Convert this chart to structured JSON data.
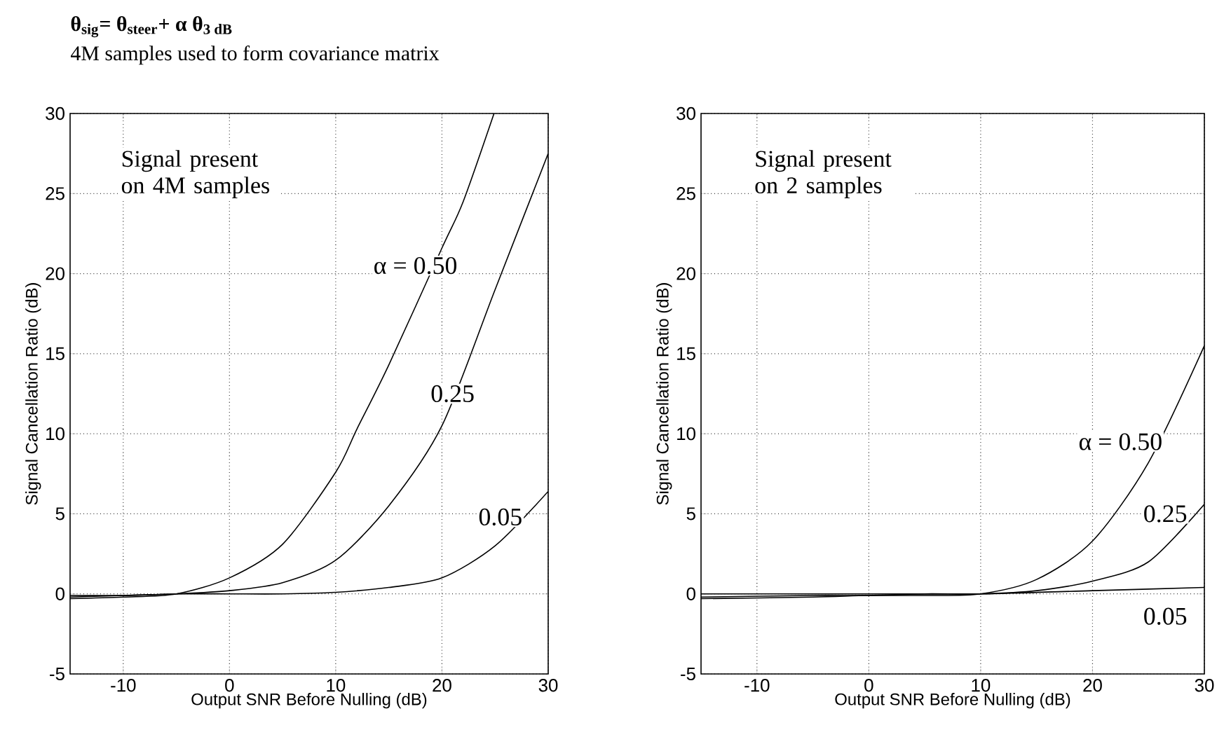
{
  "chart_data": [
    {
      "type": "line",
      "title": "θ$_{sig}$= θ$_{steer}$+ α θ$_{3 dB}$",
      "subtitle": "4M samples used to form covariance matrix",
      "xlabel": "Output SNR Before Nulling (dB)",
      "ylabel": "Signal Cancellation Ratio (dB)",
      "annotations": [
        "Signal present on 4M samples"
      ],
      "xlim": [
        -15,
        30
      ],
      "ylim": [
        -5,
        30
      ],
      "xticks": [
        -10,
        0,
        10,
        20,
        30
      ],
      "yticks": [
        -5,
        0,
        5,
        10,
        15,
        20,
        25,
        30
      ],
      "grid": true,
      "line_style": "solid",
      "marker": "none",
      "series": [
        {
          "name": "α = 0.50",
          "color": "#000000",
          "x": [
            -15,
            -10,
            -5,
            0,
            5,
            10,
            12,
            15,
            20,
            22,
            24.9
          ],
          "values": [
            -0.3,
            -0.2,
            0,
            1,
            3.1,
            7.6,
            10.3,
            14.3,
            21.6,
            24.5,
            30
          ]
        },
        {
          "name": "0.25",
          "color": "#000000",
          "x": [
            -15,
            -10,
            -5,
            0,
            5,
            10,
            15,
            20,
            25,
            30
          ],
          "values": [
            -0.2,
            -0.1,
            0,
            0.2,
            0.7,
            2.1,
            5.5,
            10.5,
            19,
            27.5
          ]
        },
        {
          "name": "0.05",
          "color": "#000000",
          "x": [
            -15,
            -10,
            -5,
            0,
            5,
            10,
            15,
            20,
            25,
            30
          ],
          "values": [
            -0.1,
            -0.1,
            0,
            0,
            0,
            0.1,
            0.4,
            1,
            3,
            6.4
          ]
        }
      ]
    },
    {
      "type": "line",
      "xlabel": "Output SNR Before Nulling (dB)",
      "ylabel": "Signal Cancellation Ratio (dB)",
      "annotations": [
        "Signal present on 2 samples"
      ],
      "xlim": [
        -15,
        30
      ],
      "ylim": [
        -5,
        30
      ],
      "xticks": [
        -10,
        0,
        10,
        20,
        30
      ],
      "yticks": [
        -5,
        0,
        5,
        10,
        15,
        20,
        25,
        30
      ],
      "grid": true,
      "line_style": "solid",
      "marker": "none",
      "series": [
        {
          "name": "α = 0.50",
          "color": "#000000",
          "x": [
            -15,
            -5,
            0,
            5,
            10,
            15,
            20,
            25,
            30
          ],
          "values": [
            -0.3,
            -0.2,
            -0.1,
            -0.1,
            0,
            0.9,
            3.3,
            8.2,
            15.5
          ]
        },
        {
          "name": "0.25",
          "color": "#000000",
          "x": [
            -15,
            -5,
            0,
            5,
            10,
            15,
            20,
            25,
            30
          ],
          "values": [
            -0.2,
            -0.1,
            -0.1,
            0,
            0,
            0.2,
            0.8,
            2,
            5.6
          ]
        },
        {
          "name": "0.05",
          "color": "#000000",
          "x": [
            -15,
            0,
            10,
            20,
            30
          ],
          "values": [
            0,
            0,
            0,
            0.2,
            0.4
          ]
        }
      ]
    }
  ]
}
